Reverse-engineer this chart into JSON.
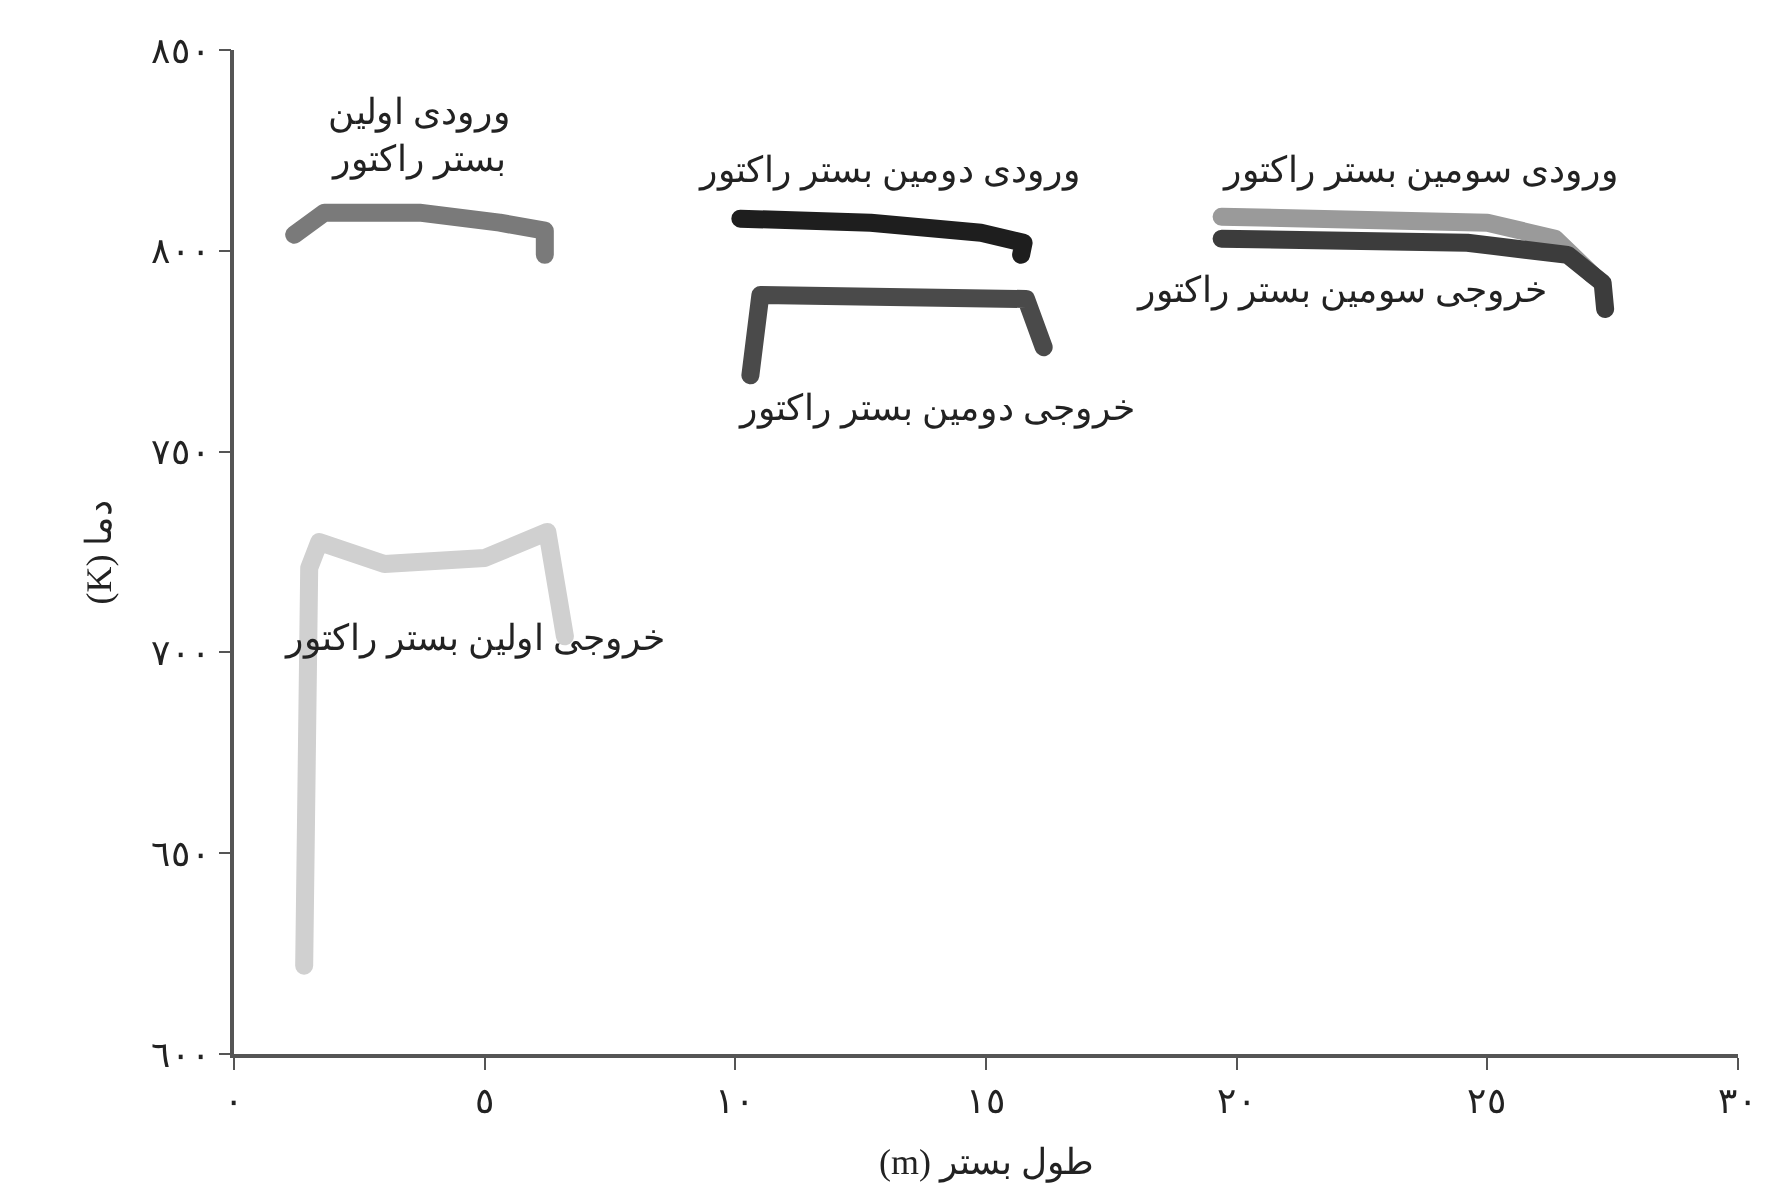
{
  "chart_data": {
    "type": "line",
    "xlabel": "(m) طول بستر",
    "ylabel": "(K) دما",
    "xlim": [
      0,
      30
    ],
    "ylim": [
      600,
      850
    ],
    "xticks": [
      {
        "value": 0,
        "label": "٠"
      },
      {
        "value": 5,
        "label": "٥"
      },
      {
        "value": 10,
        "label": "١٠"
      },
      {
        "value": 15,
        "label": "١٥"
      },
      {
        "value": 20,
        "label": "٢٠"
      },
      {
        "value": 25,
        "label": "٢٥"
      },
      {
        "value": 30,
        "label": "٣٠"
      }
    ],
    "yticks": [
      {
        "value": 600,
        "label": "٦٠٠"
      },
      {
        "value": 650,
        "label": "٦٥٠"
      },
      {
        "value": 700,
        "label": "٧٠٠"
      },
      {
        "value": 750,
        "label": "٧٥٠"
      },
      {
        "value": 800,
        "label": "٨٠٠"
      },
      {
        "value": 850,
        "label": "٨٥٠"
      }
    ],
    "legend": false,
    "line_style": "solid",
    "series": [
      {
        "name": "ورودی اولین\nبستر راکتور",
        "color": "#7a7a7a",
        "x": [
          1.2,
          1.8,
          3.7,
          5.3,
          6.2,
          6.2
        ],
        "values": [
          804,
          809.5,
          809.5,
          807,
          805,
          799
        ]
      },
      {
        "name": "خروجی اولین بستر راکتور",
        "color": "#d0d0d0",
        "x": [
          1.4,
          1.5,
          1.7,
          3.0,
          5.0,
          6.25,
          6.6
        ],
        "values": [
          622,
          721,
          727.5,
          722,
          723.5,
          730,
          704
        ]
      },
      {
        "name": "ورودی دومین بستر راکتور",
        "color": "#1e1e1e",
        "x": [
          10.1,
          12.7,
          14.9,
          15.75,
          15.7
        ],
        "values": [
          808,
          807,
          804.5,
          802,
          799
        ]
      },
      {
        "name": "خروجی دومین بستر راکتور",
        "color": "#4a4a4a",
        "x": [
          10.3,
          10.5,
          15.8,
          16.15
        ],
        "values": [
          769,
          789,
          788,
          776
        ]
      },
      {
        "name": "ورودی سومین بستر راکتور",
        "color": "#9a9a9a",
        "x": [
          19.7,
          25.0,
          26.35,
          27.1
        ],
        "values": [
          808.5,
          807,
          803,
          794
        ]
      },
      {
        "name": "خروجی سومین بستر راکتور",
        "color": "#3c3c3c",
        "x": [
          19.7,
          24.6,
          26.6,
          27.3,
          27.35
        ],
        "values": [
          803,
          802,
          799,
          792,
          785.5
        ]
      }
    ]
  }
}
